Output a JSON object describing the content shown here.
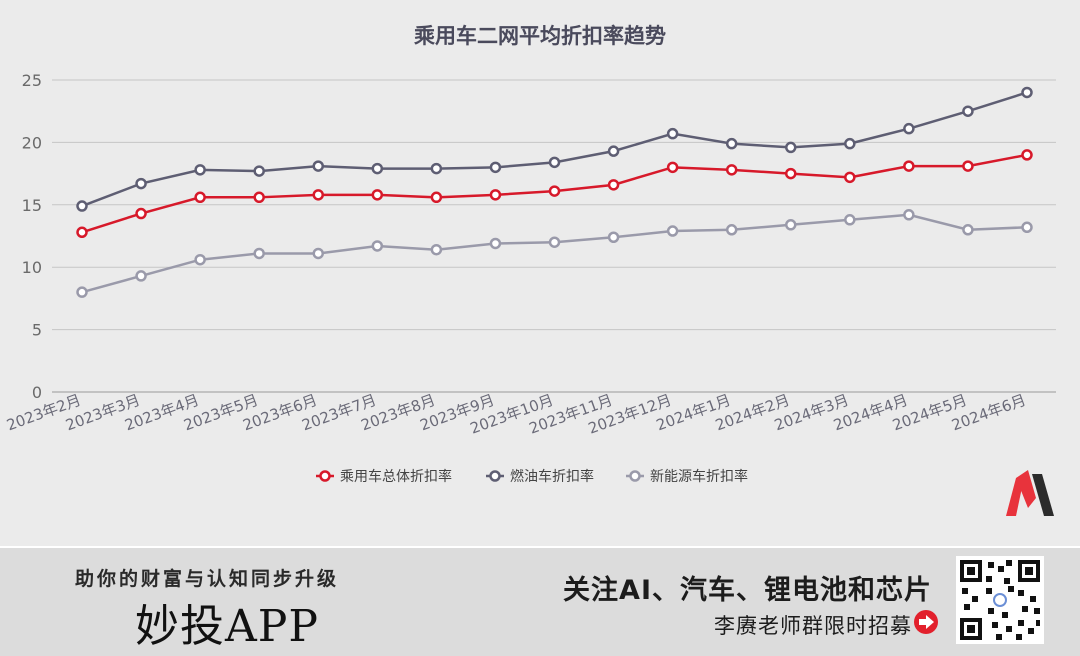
{
  "chart_data": {
    "type": "line",
    "title": "乘用车二网平均折扣率趋势",
    "categories": [
      "2023年2月",
      "2023年3月",
      "2023年4月",
      "2023年5月",
      "2023年6月",
      "2023年7月",
      "2023年8月",
      "2023年9月",
      "2023年10月",
      "2023年11月",
      "2023年12月",
      "2024年1月",
      "2024年2月",
      "2024年3月",
      "2024年4月",
      "2024年5月",
      "2024年6月"
    ],
    "y_ticks": [
      "0",
      "5",
      "10",
      "15",
      "20",
      "25"
    ],
    "ylim": [
      0,
      25
    ],
    "grid": true,
    "legend_position": "bottom",
    "series": [
      {
        "name": "乘用车总体折扣率",
        "color": "#d7192a",
        "values": [
          12.8,
          14.3,
          15.6,
          15.6,
          15.8,
          15.8,
          15.6,
          15.8,
          16.1,
          16.6,
          18.0,
          17.8,
          17.5,
          17.2,
          18.1,
          18.1,
          19.0
        ]
      },
      {
        "name": "燃油车折扣率",
        "color": "#5e5e73",
        "values": [
          14.9,
          16.7,
          17.8,
          17.7,
          18.1,
          17.9,
          17.9,
          18.0,
          18.4,
          19.3,
          20.7,
          19.9,
          19.6,
          19.9,
          21.1,
          22.5,
          24.0
        ]
      },
      {
        "name": "新能源车折扣率",
        "color": "#9a9aaa",
        "values": [
          8.0,
          9.3,
          10.6,
          11.1,
          11.1,
          11.7,
          11.4,
          11.9,
          12.0,
          12.4,
          12.9,
          13.0,
          13.4,
          13.8,
          14.2,
          13.0,
          13.2
        ]
      }
    ]
  },
  "banner": {
    "left_slogan": "助你的财富与认知同步升级",
    "app_name": "妙投APP",
    "right_title": "关注AI、汽车、锂电池和芯片",
    "right_sub": "李赓老师群限时招募",
    "logo_icon": "miaotou-logo-icon",
    "qr_icon": "qr-code-icon",
    "arrow_icon": "arrow-right-circle-icon"
  }
}
